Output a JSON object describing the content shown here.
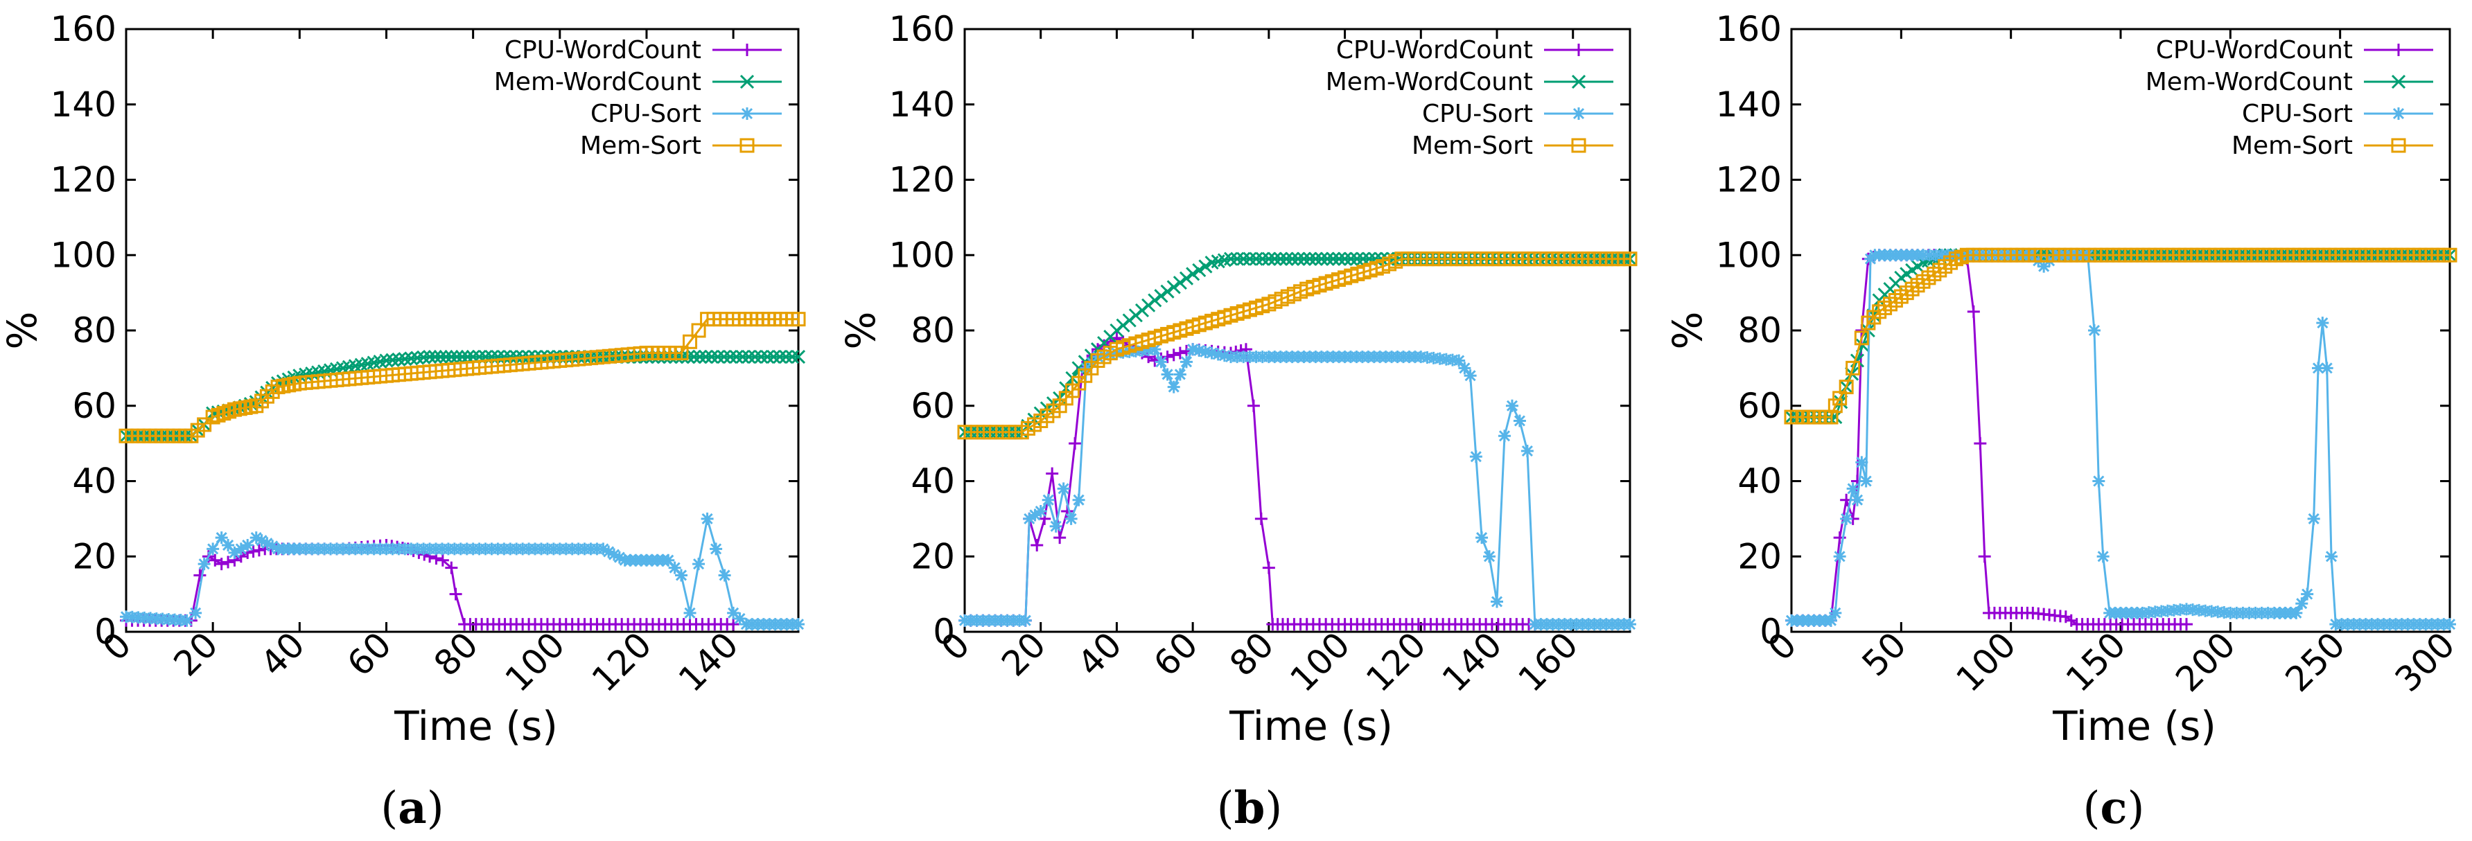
{
  "figure": {
    "series_colors": {
      "CPU-WordCount": "#9400d3",
      "Mem-WordCount": "#009e73",
      "CPU-Sort": "#56b4e9",
      "Mem-Sort": "#e69f00"
    },
    "series_markers": {
      "CPU-WordCount": "plus",
      "Mem-WordCount": "cross",
      "CPU-Sort": "star",
      "Mem-Sort": "square"
    }
  },
  "chart_data": [
    {
      "type": "line",
      "caption": {
        "open": "(",
        "letter": "a",
        "close": ")"
      },
      "xlabel": "Time (s)",
      "ylabel": "%",
      "xlim": [
        0,
        155
      ],
      "ylim": [
        0,
        160
      ],
      "xticks": [
        0,
        20,
        40,
        60,
        80,
        100,
        120,
        140
      ],
      "yticks": [
        0,
        20,
        40,
        60,
        80,
        100,
        120,
        140,
        160
      ],
      "legend_position": "top-right",
      "series": [
        {
          "name": "CPU-WordCount",
          "x": [
            0,
            15,
            17,
            19,
            22,
            25,
            28,
            32,
            40,
            50,
            60,
            65,
            70,
            73,
            75,
            76,
            78,
            90,
            110,
            130,
            140
          ],
          "y": [
            3,
            3,
            15,
            20,
            18,
            19,
            21,
            22,
            22,
            22,
            23,
            22,
            20,
            19,
            17,
            10,
            2,
            2,
            2,
            2,
            2
          ]
        },
        {
          "name": "Mem-WordCount",
          "x": [
            0,
            15,
            18,
            20,
            25,
            30,
            35,
            40,
            50,
            60,
            70,
            75,
            80,
            100,
            120,
            135,
            155
          ],
          "y": [
            52,
            52,
            55,
            58,
            59,
            61,
            66,
            68,
            70,
            72,
            73,
            73,
            73,
            73,
            73,
            73,
            73
          ]
        },
        {
          "name": "CPU-Sort",
          "x": [
            0,
            14,
            16,
            18,
            20,
            22,
            25,
            28,
            30,
            35,
            40,
            50,
            60,
            70,
            80,
            100,
            110,
            115,
            120,
            125,
            128,
            130,
            132,
            134,
            136,
            138,
            140,
            143,
            155
          ],
          "y": [
            4,
            3,
            5,
            18,
            22,
            25,
            21,
            23,
            25,
            22,
            22,
            22,
            22,
            22,
            22,
            22,
            22,
            19,
            19,
            19,
            15,
            5,
            18,
            30,
            22,
            15,
            5,
            2,
            2
          ]
        },
        {
          "name": "Mem-Sort",
          "x": [
            0,
            15,
            18,
            20,
            25,
            30,
            35,
            40,
            50,
            60,
            70,
            80,
            90,
            100,
            110,
            120,
            128,
            130,
            132,
            134,
            140,
            155
          ],
          "y": [
            52,
            52,
            55,
            57,
            59,
            60,
            65,
            66,
            67,
            68,
            69,
            70,
            71,
            72,
            73,
            74,
            74,
            77,
            80,
            83,
            83,
            83
          ]
        }
      ]
    },
    {
      "type": "line",
      "caption": {
        "open": "(",
        "letter": "b",
        "close": ")"
      },
      "xlabel": "Time (s)",
      "ylabel": "%",
      "xlim": [
        0,
        175
      ],
      "ylim": [
        0,
        160
      ],
      "xticks": [
        0,
        20,
        40,
        60,
        80,
        100,
        120,
        140,
        160
      ],
      "yticks": [
        0,
        20,
        40,
        60,
        80,
        100,
        120,
        140,
        160
      ],
      "legend_position": "top-right",
      "series": [
        {
          "name": "CPU-WordCount",
          "x": [
            0,
            16,
            17,
            19,
            21,
            23,
            25,
            27,
            29,
            31,
            35,
            40,
            50,
            60,
            70,
            74,
            76,
            78,
            80,
            81,
            85,
            100,
            150
          ],
          "y": [
            3,
            3,
            30,
            23,
            30,
            42,
            25,
            32,
            50,
            70,
            75,
            78,
            72,
            75,
            74,
            75,
            60,
            30,
            17,
            2,
            2,
            2,
            2
          ]
        },
        {
          "name": "Mem-WordCount",
          "x": [
            0,
            15,
            20,
            25,
            30,
            35,
            40,
            50,
            60,
            65,
            70,
            80,
            100,
            175
          ],
          "y": [
            53,
            53,
            58,
            62,
            70,
            75,
            80,
            88,
            95,
            98,
            99,
            99,
            99,
            99
          ]
        },
        {
          "name": "CPU-Sort",
          "x": [
            0,
            16,
            17,
            20,
            22,
            24,
            26,
            28,
            30,
            32,
            35,
            40,
            50,
            55,
            60,
            70,
            80,
            100,
            120,
            130,
            133,
            136,
            138,
            140,
            142,
            144,
            146,
            148,
            150,
            175
          ],
          "y": [
            3,
            3,
            30,
            32,
            35,
            28,
            38,
            30,
            35,
            70,
            73,
            74,
            75,
            65,
            75,
            73,
            73,
            73,
            73,
            72,
            68,
            25,
            20,
            8,
            52,
            60,
            56,
            48,
            2,
            2
          ]
        },
        {
          "name": "Mem-Sort",
          "x": [
            0,
            15,
            20,
            25,
            30,
            35,
            40,
            50,
            60,
            70,
            80,
            90,
            100,
            110,
            115,
            120,
            175
          ],
          "y": [
            53,
            53,
            56,
            60,
            66,
            72,
            75,
            78,
            81,
            84,
            87,
            91,
            94,
            97,
            99,
            99,
            99
          ]
        }
      ]
    },
    {
      "type": "line",
      "caption": {
        "open": "(",
        "letter": "c",
        "close": ")"
      },
      "xlabel": "Time (s)",
      "ylabel": "%",
      "xlim": [
        0,
        300
      ],
      "ylim": [
        0,
        160
      ],
      "xticks": [
        0,
        50,
        100,
        150,
        200,
        250,
        300
      ],
      "yticks": [
        0,
        20,
        40,
        60,
        80,
        100,
        120,
        140,
        160
      ],
      "legend_position": "top-right",
      "series": [
        {
          "name": "CPU-WordCount",
          "x": [
            0,
            18,
            22,
            25,
            28,
            30,
            32,
            35,
            40,
            50,
            60,
            70,
            80,
            83,
            86,
            88,
            90,
            95,
            110,
            125,
            130,
            140,
            180
          ],
          "y": [
            3,
            3,
            25,
            35,
            30,
            40,
            80,
            99,
            100,
            100,
            100,
            100,
            99,
            85,
            50,
            20,
            5,
            5,
            5,
            4,
            2,
            2,
            2
          ]
        },
        {
          "name": "Mem-WordCount",
          "x": [
            0,
            20,
            25,
            30,
            35,
            40,
            50,
            60,
            70,
            80,
            100,
            300
          ],
          "y": [
            57,
            57,
            65,
            72,
            80,
            88,
            94,
            98,
            100,
            100,
            100,
            100
          ]
        },
        {
          "name": "CPU-Sort",
          "x": [
            0,
            18,
            20,
            22,
            25,
            28,
            30,
            32,
            34,
            36,
            38,
            40,
            50,
            60,
            80,
            100,
            110,
            115,
            120,
            135,
            138,
            140,
            142,
            145,
            150,
            160,
            180,
            200,
            220,
            230,
            235,
            238,
            240,
            242,
            244,
            246,
            248,
            300
          ],
          "y": [
            3,
            3,
            5,
            20,
            30,
            38,
            35,
            45,
            40,
            99,
            100,
            100,
            100,
            100,
            100,
            100,
            100,
            97,
            100,
            100,
            80,
            40,
            20,
            5,
            5,
            5,
            6,
            5,
            5,
            5,
            10,
            30,
            70,
            82,
            70,
            20,
            2,
            2
          ]
        },
        {
          "name": "Mem-Sort",
          "x": [
            0,
            18,
            20,
            22,
            25,
            28,
            32,
            35,
            40,
            50,
            60,
            70,
            75,
            80,
            100,
            300
          ],
          "y": [
            57,
            57,
            60,
            62,
            65,
            70,
            78,
            82,
            85,
            89,
            93,
            97,
            99,
            100,
            100,
            100
          ]
        }
      ]
    }
  ]
}
